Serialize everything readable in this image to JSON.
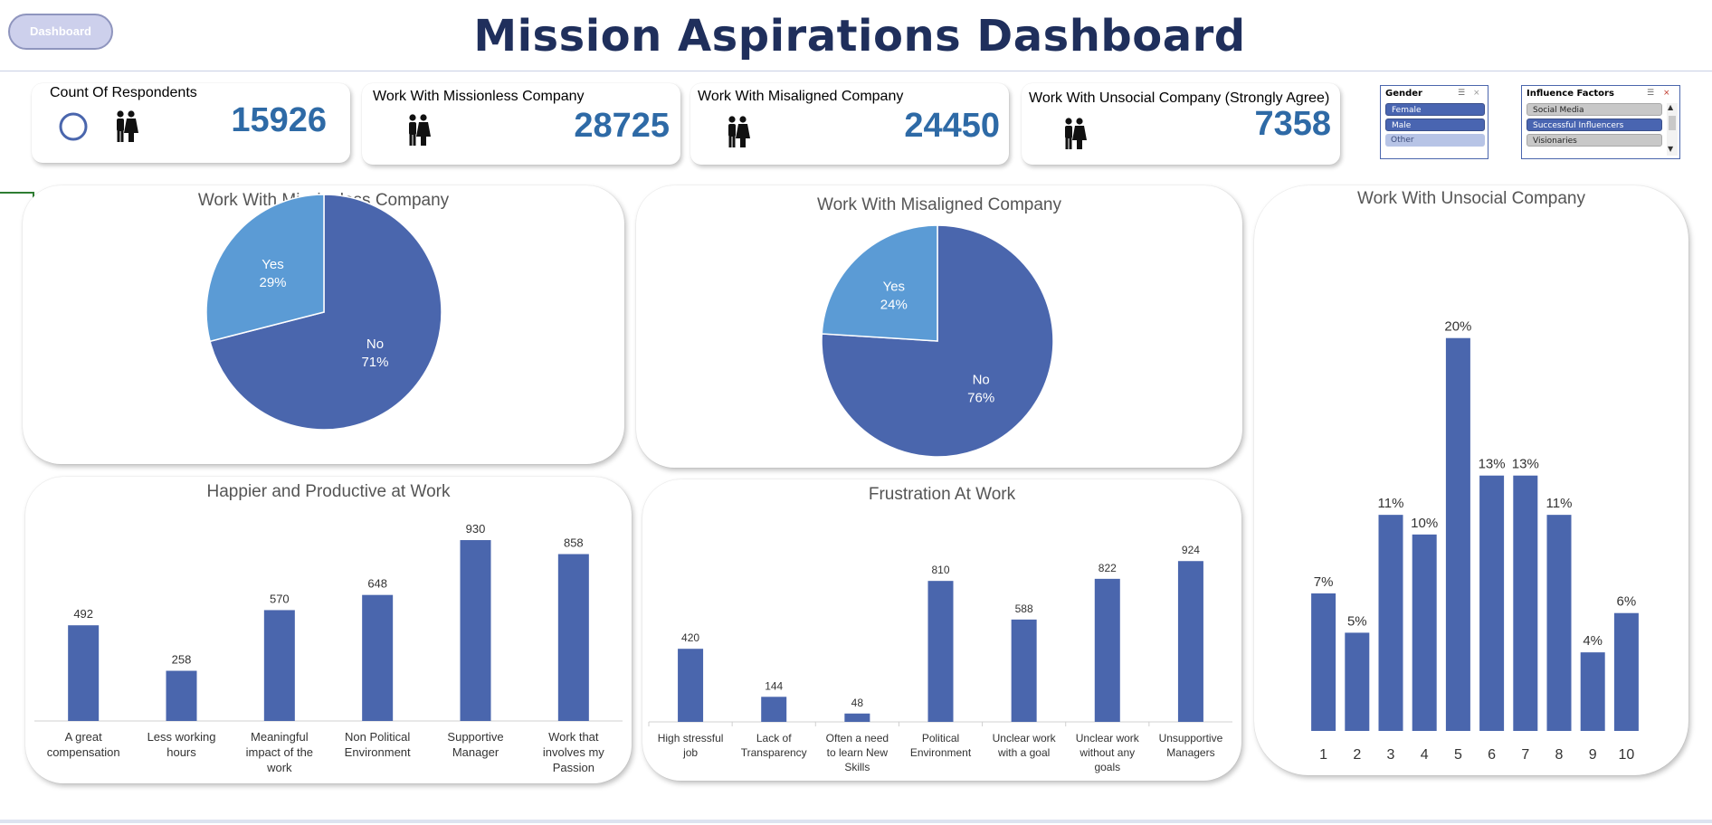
{
  "header": {
    "dashboard_button": "Dashboard",
    "title": "Mission Aspirations Dashboard"
  },
  "kpis": [
    {
      "title": "Count Of Respondents",
      "value": "15926"
    },
    {
      "title": "Work With Missionless Company",
      "value": "28725"
    },
    {
      "title": "Work With Misaligned Company",
      "value": "24450"
    },
    {
      "title": "Work With Unsocial Company (Strongly Agree)",
      "value": "7358"
    }
  ],
  "slicers": {
    "gender": {
      "title": "Gender",
      "items": [
        "Female",
        "Male",
        "Other"
      ],
      "selected": [
        "Female",
        "Male"
      ]
    },
    "influence": {
      "title": "Influence Factors",
      "items": [
        "Social Media",
        "Successful Influencers",
        "Visionaries"
      ],
      "selected": [
        "Successful Influencers"
      ]
    }
  },
  "colors": {
    "primary": "#4a66ad",
    "light": "#5b9bd5",
    "kpi_value": "#2e6aa6",
    "title": "#1f2f5c"
  },
  "icons": [
    "people-icon",
    "ring-icon",
    "filter-icon",
    "clear-filter-icon",
    "scroll-up-icon",
    "scroll-down-icon"
  ],
  "chart_data": [
    {
      "type": "pie",
      "title": "Work With Missionless Company",
      "slices": [
        {
          "label": "No",
          "value": 71,
          "display": "71%"
        },
        {
          "label": "Yes",
          "value": 29,
          "display": "29%"
        }
      ]
    },
    {
      "type": "pie",
      "title": "Work With Misaligned Company",
      "slices": [
        {
          "label": "No",
          "value": 76,
          "display": "76%"
        },
        {
          "label": "Yes",
          "value": 24,
          "display": "24%"
        }
      ]
    },
    {
      "type": "bar",
      "title": "Work With Unsocial Company",
      "categories": [
        "1",
        "2",
        "3",
        "4",
        "5",
        "6",
        "7",
        "8",
        "9",
        "10"
      ],
      "values": [
        7,
        5,
        11,
        10,
        20,
        13,
        13,
        11,
        4,
        6
      ],
      "labels": [
        "7%",
        "5%",
        "11%",
        "10%",
        "20%",
        "13%",
        "13%",
        "11%",
        "4%",
        "6%"
      ]
    },
    {
      "type": "bar",
      "title": "Happier and Productive at Work",
      "categories": [
        "A great compensation",
        "Less working hours",
        "Meaningful impact of the work",
        "Non Political Environment",
        "Supportive Manager",
        "Work that involves my Passion"
      ],
      "values": [
        492,
        258,
        570,
        648,
        930,
        858
      ]
    },
    {
      "type": "bar",
      "title": "Frustration At Work",
      "categories": [
        "High stressful job",
        "Lack of Transparency",
        "Often a need to learn New Skills",
        "Political Environment",
        "Unclear work with a goal",
        "Unclear work without any goals",
        "Unsupportive Managers"
      ],
      "values": [
        420,
        144,
        48,
        810,
        588,
        822,
        924
      ]
    }
  ]
}
